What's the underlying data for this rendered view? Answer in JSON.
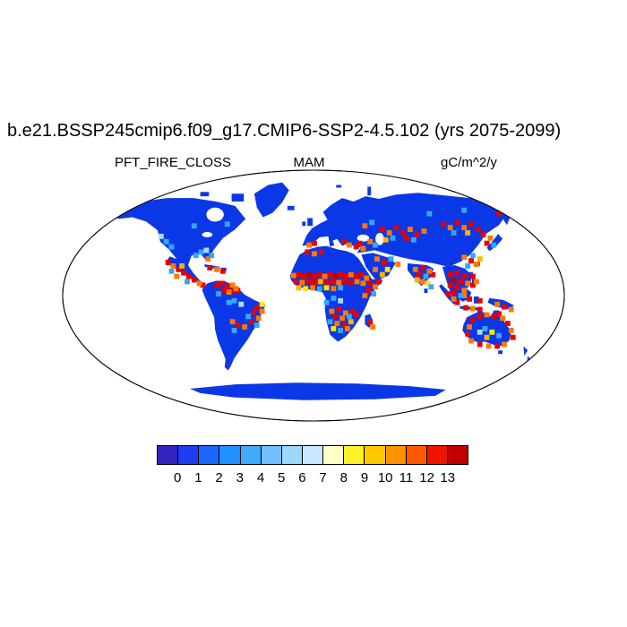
{
  "title": "b.e21.BSSP245cmip6.f09_g17.CMIP6-SSP2-4.5.102 (yrs 2075-2099)",
  "header": {
    "field": "PFT_FIRE_CLOSS",
    "season": "MAM",
    "units": "gC/m^2/y"
  },
  "colorbar": {
    "tick_labels": [
      "0",
      "1",
      "2",
      "3",
      "4",
      "5",
      "6",
      "7",
      "8",
      "9",
      "10",
      "11",
      "12",
      "13"
    ],
    "colors": [
      "#3324BE",
      "#1E3CF0",
      "#1E64FF",
      "#1E90FF",
      "#41AAFF",
      "#73BFFF",
      "#9ED7FF",
      "#C8E8FF",
      "#FFFFC8",
      "#FFF028",
      "#FFC800",
      "#FF9000",
      "#FF5A00",
      "#EE1400",
      "#C00000"
    ]
  },
  "map": {
    "land_color": "#0B38E6",
    "ocean_color": "#FFFFFF",
    "outline_color": "#000000",
    "cell_size": 6,
    "hotspot_palette": {
      "r": "#E60000",
      "d": "#BE0000",
      "o": "#FF7800",
      "a": "#FFB400",
      "y": "#FFE800",
      "c": "#35A7FF",
      "l": "#A8DCFF"
    },
    "hotspots": [
      {
        "c": "r",
        "cells": [
          [
            120,
            104
          ],
          [
            132,
            112
          ],
          [
            138,
            116
          ],
          [
            144,
            120
          ],
          [
            150,
            124
          ],
          [
            160,
            130
          ],
          [
            168,
            110
          ],
          [
            183,
            114
          ],
          [
            176,
            130
          ],
          [
            182,
            128
          ],
          [
            188,
            132
          ],
          [
            184,
            136
          ],
          [
            196,
            136
          ],
          [
            200,
            136
          ],
          [
            222,
            156
          ],
          [
            218,
            162
          ],
          [
            216,
            172
          ],
          [
            200,
            176
          ],
          [
            270,
            118
          ],
          [
            276,
            120
          ],
          [
            288,
            120
          ],
          [
            294,
            118
          ],
          [
            306,
            118
          ],
          [
            318,
            118
          ],
          [
            324,
            120
          ],
          [
            336,
            120
          ],
          [
            342,
            118
          ],
          [
            267,
            126
          ],
          [
            281,
            126
          ],
          [
            288,
            127
          ],
          [
            302,
            127
          ],
          [
            309,
            126
          ],
          [
            323,
            126
          ],
          [
            330,
            127
          ],
          [
            352,
            128
          ],
          [
            350,
            136
          ],
          [
            362,
            126
          ],
          [
            316,
            158
          ],
          [
            332,
            160
          ],
          [
            312,
            166
          ],
          [
            322,
            176
          ],
          [
            336,
            164
          ],
          [
            352,
            172
          ],
          [
            288,
            82
          ],
          [
            322,
            80
          ],
          [
            336,
            86
          ],
          [
            340,
            82
          ],
          [
            280,
            92
          ],
          [
            296,
            92
          ],
          [
            366,
            66
          ],
          [
            382,
            64
          ],
          [
            390,
            70
          ],
          [
            406,
            72
          ],
          [
            394,
            76
          ],
          [
            436,
            60
          ],
          [
            452,
            58
          ],
          [
            468,
            60
          ],
          [
            476,
            66
          ],
          [
            482,
            72
          ],
          [
            486,
            82
          ],
          [
            500,
            48
          ],
          [
            368,
            104
          ],
          [
            412,
            110
          ],
          [
            408,
            118
          ],
          [
            424,
            118
          ],
          [
            444,
            118
          ],
          [
            452,
            116
          ],
          [
            460,
            120
          ],
          [
            456,
            126
          ],
          [
            444,
            130
          ],
          [
            452,
            132
          ],
          [
            448,
            138
          ],
          [
            468,
            102
          ],
          [
            470,
            120
          ],
          [
            470,
            130
          ],
          [
            442,
            140
          ],
          [
            452,
            150
          ],
          [
            466,
            146
          ],
          [
            462,
            156
          ],
          [
            478,
            158
          ],
          [
            478,
            148
          ],
          [
            506,
            155
          ],
          [
            470,
            170
          ],
          [
            478,
            166
          ],
          [
            494,
            166
          ],
          [
            500,
            163
          ],
          [
            510,
            174
          ],
          [
            516,
            190
          ],
          [
            464,
            186
          ],
          [
            478,
            198
          ],
          [
            498,
            200
          ]
        ]
      },
      {
        "c": "d",
        "cells": [
          [
            282,
            118
          ],
          [
            312,
            120
          ],
          [
            448,
            124
          ]
        ]
      },
      {
        "c": "o",
        "cells": [
          [
            126,
            108
          ],
          [
            130,
            120
          ],
          [
            156,
            128
          ],
          [
            166,
            100
          ],
          [
            176,
            112
          ],
          [
            194,
            130
          ],
          [
            190,
            138
          ],
          [
            198,
            134
          ],
          [
            228,
            160
          ],
          [
            224,
            168
          ],
          [
            208,
            178
          ],
          [
            194,
            172
          ],
          [
            264,
            119
          ],
          [
            300,
            120
          ],
          [
            330,
            118
          ],
          [
            348,
            122
          ],
          [
            274,
            127
          ],
          [
            316,
            127
          ],
          [
            337,
            126
          ],
          [
            344,
            128
          ],
          [
            286,
            133
          ],
          [
            310,
            134
          ],
          [
            358,
            132
          ],
          [
            346,
            142
          ],
          [
            308,
            160
          ],
          [
            324,
            162
          ],
          [
            320,
            168
          ],
          [
            314,
            174
          ],
          [
            326,
            180
          ],
          [
            355,
            178
          ],
          [
            282,
            84
          ],
          [
            328,
            84
          ],
          [
            344,
            88
          ],
          [
            288,
            94
          ],
          [
            352,
            80
          ],
          [
            346,
            62
          ],
          [
            374,
            70
          ],
          [
            398,
            66
          ],
          [
            414,
            68
          ],
          [
            444,
            64
          ],
          [
            460,
            64
          ],
          [
            490,
            76
          ],
          [
            360,
            100
          ],
          [
            384,
            106
          ],
          [
            358,
            112
          ],
          [
            404,
            112
          ],
          [
            420,
            114
          ],
          [
            412,
            126
          ],
          [
            464,
            128
          ],
          [
            460,
            136
          ],
          [
            460,
            98
          ],
          [
            474,
            106
          ],
          [
            474,
            126
          ],
          [
            448,
            146
          ],
          [
            460,
            142
          ],
          [
            470,
            157
          ],
          [
            498,
            152
          ],
          [
            514,
            158
          ],
          [
            486,
            164
          ],
          [
            504,
            168
          ],
          [
            514,
            182
          ],
          [
            466,
            178
          ],
          [
            468,
            194
          ],
          [
            488,
            200
          ],
          [
            506,
            198
          ]
        ]
      },
      {
        "c": "a",
        "cells": [
          [
            136,
            108
          ],
          [
            295,
            126
          ],
          [
            270,
            133
          ],
          [
            330,
            172
          ],
          [
            370,
            78
          ],
          [
            464,
            70
          ],
          [
            478,
            100
          ],
          [
            406,
            124
          ],
          [
            366,
            118
          ],
          [
            486,
            190
          ]
        ]
      },
      {
        "c": "y",
        "cells": [
          [
            228,
            152
          ],
          [
            278,
            134
          ],
          [
            302,
            133
          ],
          [
            310,
            180
          ],
          [
            372,
            112
          ],
          [
            418,
            128
          ],
          [
            492,
            184
          ]
        ]
      },
      {
        "c": "c",
        "cells": [
          [
            124,
            114
          ],
          [
            142,
            126
          ],
          [
            158,
            92
          ],
          [
            152,
            96
          ],
          [
            170,
            96
          ],
          [
            118,
            80
          ],
          [
            124,
            86
          ],
          [
            150,
            62
          ],
          [
            188,
            60
          ],
          [
            178,
            140
          ],
          [
            196,
            148
          ],
          [
            190,
            150
          ],
          [
            222,
            176
          ],
          [
            212,
            166
          ],
          [
            196,
            182
          ],
          [
            294,
            134
          ],
          [
            318,
            133
          ],
          [
            356,
            140
          ],
          [
            310,
            145
          ],
          [
            302,
            150
          ],
          [
            328,
            166
          ],
          [
            306,
            172
          ],
          [
            318,
            182
          ],
          [
            376,
            100
          ],
          [
            416,
            120
          ],
          [
            422,
            132
          ],
          [
            456,
            142
          ],
          [
            464,
            108
          ],
          [
            470,
            96
          ],
          [
            448,
            70
          ],
          [
            378,
            76
          ],
          [
            402,
            78
          ],
          [
            494,
            84
          ],
          [
            354,
            58
          ],
          [
            358,
            84
          ],
          [
            420,
            48
          ],
          [
            460,
            44
          ],
          [
            484,
            180
          ],
          [
            500,
            188
          ]
        ]
      },
      {
        "c": "l",
        "cells": [
          [
            164,
            90
          ],
          [
            112,
            74
          ],
          [
            204,
            152
          ],
          [
            318,
            148
          ],
          [
            478,
            184
          ]
        ]
      }
    ]
  },
  "chart_data": {
    "type": "heatmap",
    "title": "b.e21.BSSP245cmip6.f09_g17.CMIP6-SSP2-4.5.102 (yrs 2075-2099)",
    "variable": "PFT_FIRE_CLOSS",
    "season": "MAM",
    "units": "gC/m^2/y",
    "projection": "robinson",
    "legend_position": "bottom",
    "colorbar_levels": [
      0,
      1,
      2,
      3,
      4,
      5,
      6,
      7,
      8,
      9,
      10,
      11,
      12,
      13
    ],
    "colorbar_colors": [
      "#3324BE",
      "#1E3CF0",
      "#1E64FF",
      "#1E90FF",
      "#41AAFF",
      "#73BFFF",
      "#9ED7FF",
      "#C8E8FF",
      "#FFFFC8",
      "#FFF028",
      "#FFC800",
      "#FF9000",
      "#FF5A00",
      "#EE1400",
      "#C00000"
    ],
    "high_value_regions": [
      "Mexico and Central America",
      "Caribbean",
      "northern South America (Venezuela/Colombia)",
      "eastern Brazil",
      "Sahel belt of Africa",
      "Horn of Africa",
      "southern-central Africa",
      "Madagascar",
      "Mediterranean margins",
      "Central Asia and Mongolian steppe",
      "Middle East",
      "India",
      "Indochina / Southeast Asia",
      "Maritime Southeast Asia",
      "northern Australia"
    ],
    "low_value_regions": [
      "boreal North America",
      "Greenland",
      "northern Eurasia",
      "Sahara interior",
      "Amazon core",
      "Congo basin core",
      "Antarctica"
    ]
  }
}
